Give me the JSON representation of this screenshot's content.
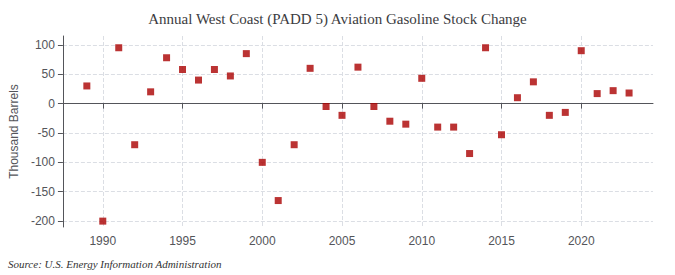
{
  "chart_data": {
    "type": "scatter",
    "title": "Annual West Coast (PADD 5) Aviation Gasoline Stock Change",
    "ylabel": "Thousand Barrels",
    "source": "Source: U.S. Energy Information Administration",
    "x": [
      1989,
      1990,
      1991,
      1992,
      1993,
      1994,
      1995,
      1996,
      1997,
      1998,
      1999,
      2000,
      2001,
      2002,
      2003,
      2004,
      2005,
      2006,
      2007,
      2008,
      2009,
      2010,
      2011,
      2012,
      2013,
      2014,
      2015,
      2016,
      2017,
      2018,
      2019,
      2020,
      2021,
      2022,
      2023
    ],
    "values": [
      30,
      -200,
      95,
      -70,
      20,
      78,
      58,
      40,
      58,
      47,
      85,
      -100,
      -165,
      -70,
      60,
      -5,
      -20,
      62,
      -5,
      -30,
      -35,
      43,
      -40,
      -40,
      -85,
      95,
      -53,
      10,
      37,
      -20,
      -15,
      90,
      17,
      22,
      18
    ],
    "color": "#aa0000",
    "marker": "square",
    "xlim": [
      1987.5,
      2024.5
    ],
    "xticks": [
      1990,
      1995,
      2000,
      2005,
      2010,
      2015,
      2020
    ],
    "ylim": [
      -210,
      115
    ],
    "yticks": [
      -200,
      -150,
      -100,
      -50,
      0,
      50,
      100
    ],
    "grid": true
  }
}
